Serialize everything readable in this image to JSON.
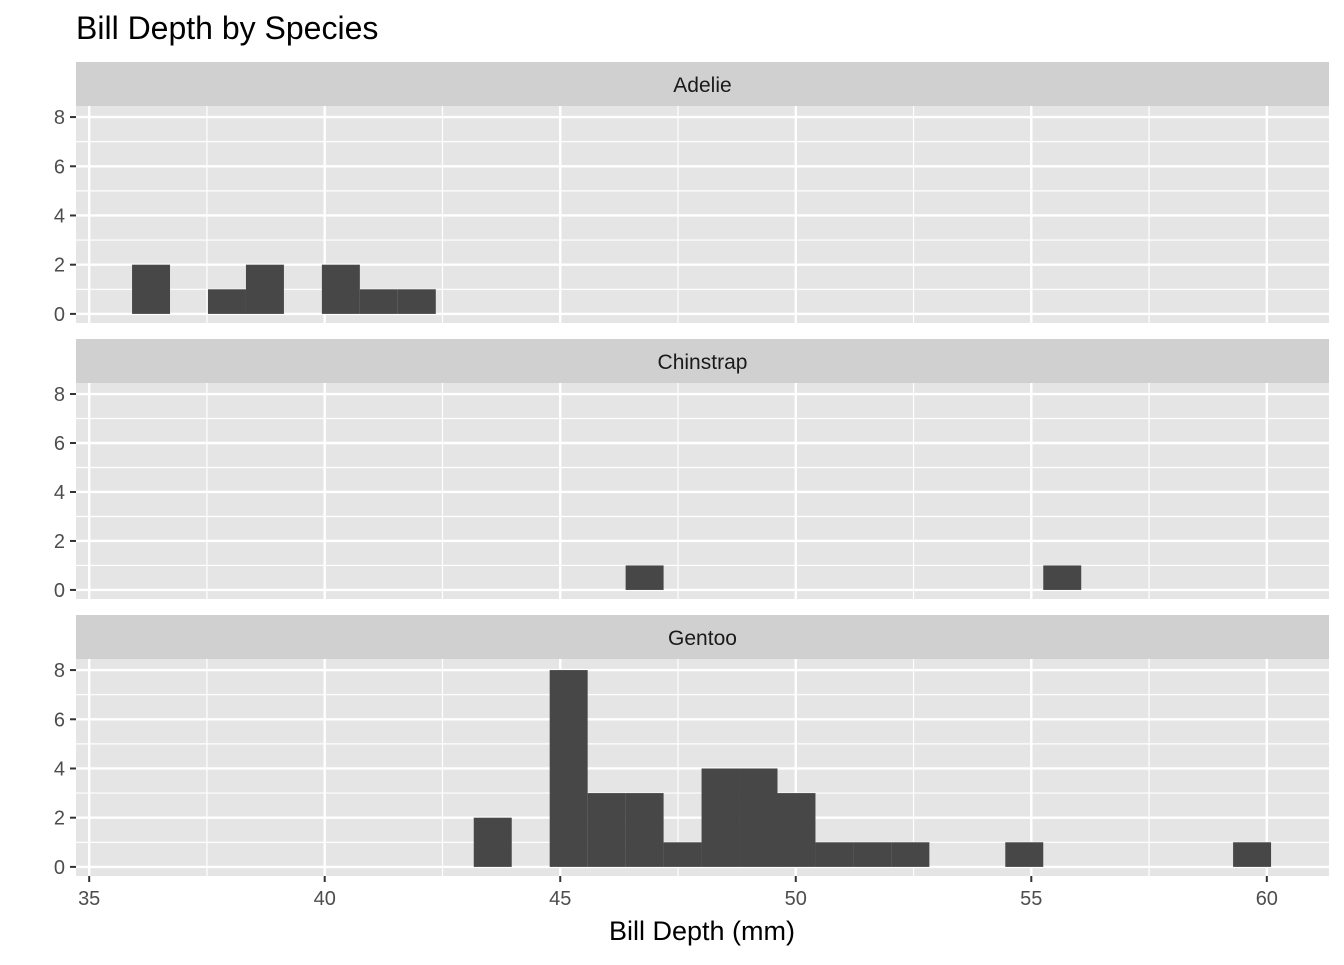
{
  "chart_data": {
    "type": "bar",
    "subtype": "faceted-histogram",
    "title": "Bill Depth by Species",
    "xlabel": "Bill Depth (mm)",
    "ylabel": "",
    "xlim": [
      34.72,
      61.32
    ],
    "ylim": [
      -0.37,
      8.45
    ],
    "x_ticks": [
      35,
      40,
      45,
      50,
      55,
      60
    ],
    "y_ticks": [
      0,
      2,
      4,
      6,
      8
    ],
    "grid": true,
    "bin_start": 35.91,
    "bin_width": 0.806,
    "facets": [
      {
        "name": "Adelie",
        "counts": [
          2,
          0,
          1,
          2,
          0,
          2,
          1,
          1,
          0,
          0,
          0,
          0,
          0,
          0,
          0,
          0,
          0,
          0,
          0,
          0,
          0,
          0,
          0,
          0,
          0,
          0,
          0,
          0,
          0,
          0
        ]
      },
      {
        "name": "Chinstrap",
        "counts": [
          0,
          0,
          0,
          0,
          0,
          0,
          0,
          0,
          0,
          0,
          0,
          0,
          0,
          1,
          0,
          0,
          0,
          0,
          0,
          0,
          0,
          0,
          0,
          0,
          1,
          0,
          0,
          0,
          0,
          0
        ]
      },
      {
        "name": "Gentoo",
        "counts": [
          0,
          0,
          0,
          0,
          0,
          0,
          0,
          0,
          0,
          2,
          0,
          8,
          3,
          3,
          1,
          4,
          4,
          3,
          1,
          1,
          1,
          0,
          0,
          1,
          0,
          0,
          0,
          0,
          0,
          1
        ]
      }
    ],
    "colors": {
      "bar": "#474747",
      "panel": "#e5e5e5",
      "strip": "#d0d0d0",
      "grid": "#ffffff"
    }
  }
}
